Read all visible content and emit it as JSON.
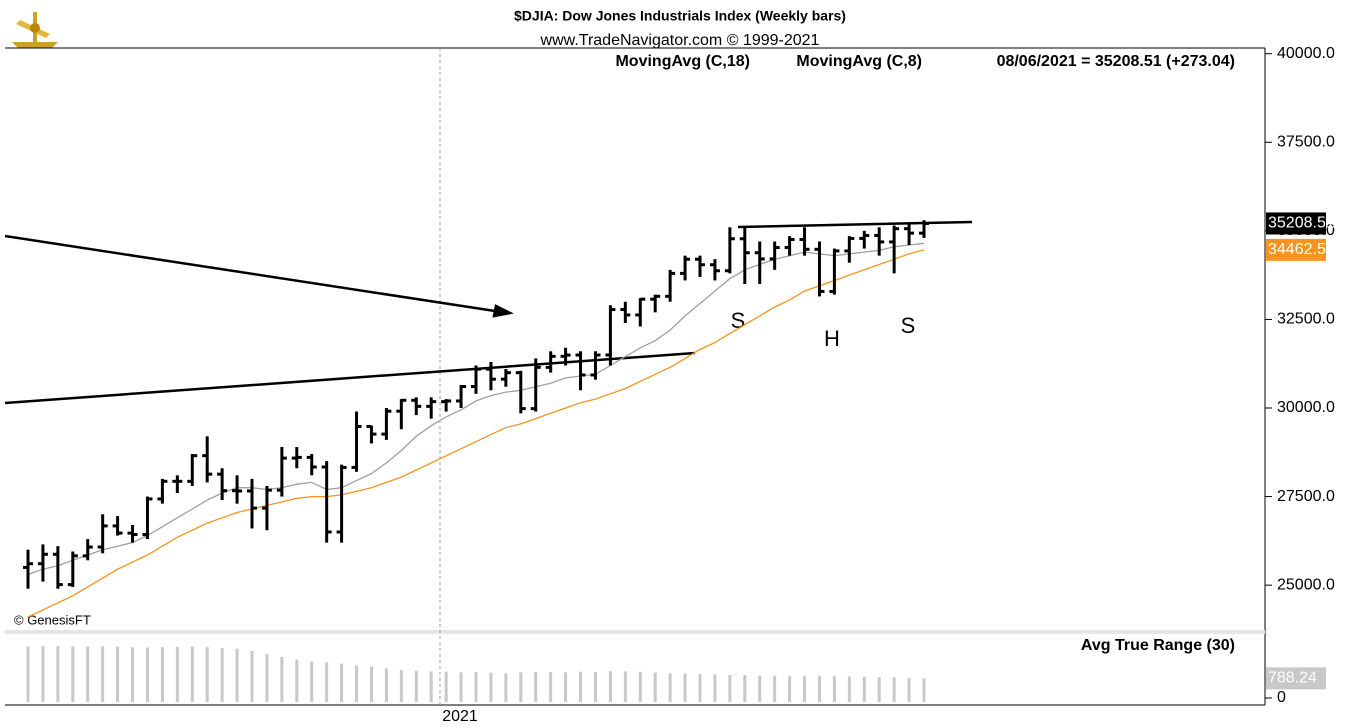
{
  "chart_data": {
    "type": "ohlc",
    "title": "$DJIA:  Dow Jones Industrials Index  (Weekly bars)",
    "subtitle": "www.TradeNavigator.com © 1999-2021",
    "legend": [
      "MovingAvg (C,18)",
      "MovingAvg (C,8)"
    ],
    "last_quote": "08/06/2021 = 35208.51 (+273.04)",
    "credit": "© GenesisFT",
    "x_label": "2021",
    "annotations": [
      "S",
      "H",
      "S"
    ],
    "color": "#000000",
    "grid": false,
    "open": [
      25500,
      25605,
      25871,
      25015,
      25827,
      26075,
      26672,
      26469,
      26428,
      27433,
      27931,
      27930,
      28654,
      28133,
      27666,
      27657,
      27174,
      27682,
      28586,
      28606,
      28335,
      26501,
      28323,
      29479,
      29263,
      29910,
      30218,
      30046,
      30179,
      30199,
      30606,
      31097,
      30814,
      30997,
      29982,
      31148,
      31458,
      31494,
      30932,
      31496,
      32779,
      32627,
      33072,
      33153,
      33800,
      34200,
      34043,
      33874,
      34777,
      34382,
      34208,
      34529,
      34756,
      34479,
      33290,
      34433,
      34786,
      34870,
      34687,
      35061,
      34935
    ],
    "high": [
      26000,
      26150,
      26100,
      25950,
      26300,
      27000,
      26950,
      26700,
      27500,
      28000,
      28100,
      28700,
      29200,
      28300,
      28100,
      28000,
      27800,
      28900,
      28900,
      28700,
      28500,
      28400,
      29900,
      29500,
      30000,
      30250,
      30300,
      30300,
      30250,
      30650,
      31200,
      31300,
      31100,
      31050,
      31400,
      31600,
      31700,
      31600,
      31600,
      32900,
      33000,
      33100,
      33200,
      33900,
      34300,
      34300,
      34200,
      35100,
      35100,
      34700,
      34700,
      34850,
      35100,
      34700,
      34500,
      34850,
      35000,
      35100,
      35150,
      35200,
      35300
    ],
    "low": [
      24900,
      25100,
      24900,
      24950,
      25700,
      25900,
      26400,
      26200,
      26300,
      27300,
      27600,
      27800,
      27900,
      27400,
      27300,
      26600,
      26550,
      27500,
      28300,
      28100,
      26200,
      26200,
      28200,
      29000,
      29100,
      29400,
      29800,
      29700,
      29900,
      30000,
      30400,
      30500,
      30600,
      29850,
      29900,
      31000,
      31200,
      30500,
      30800,
      31200,
      32400,
      32300,
      32700,
      33000,
      33600,
      33700,
      33600,
      33800,
      33500,
      33500,
      33900,
      34300,
      34300,
      33150,
      33200,
      34100,
      34500,
      34300,
      33800,
      34600,
      34800
    ],
    "close": [
      25605,
      25871,
      25015,
      25827,
      26075,
      26672,
      26469,
      26428,
      27433,
      27931,
      27930,
      28654,
      28133,
      27666,
      27657,
      27174,
      27682,
      28586,
      28606,
      28335,
      26501,
      28323,
      29479,
      29263,
      29910,
      30218,
      30046,
      30179,
      30199,
      30606,
      31097,
      30814,
      30997,
      29982,
      31148,
      31458,
      31494,
      30932,
      31496,
      32779,
      32627,
      33072,
      33153,
      33800,
      34200,
      34043,
      33874,
      34777,
      34382,
      34208,
      34529,
      34756,
      34479,
      33290,
      34433,
      34786,
      34870,
      34687,
      35061,
      34935,
      35208.51
    ],
    "series": [
      {
        "name": "MovingAvg (C,18)",
        "color": "#f7931e",
        "values": [
          24100,
          24300,
          24500,
          24700,
          24950,
          25200,
          25450,
          25650,
          25850,
          26100,
          26350,
          26550,
          26750,
          26900,
          27050,
          27150,
          27250,
          27350,
          27450,
          27500,
          27500,
          27550,
          27650,
          27750,
          27900,
          28050,
          28250,
          28450,
          28650,
          28850,
          29050,
          29250,
          29450,
          29550,
          29700,
          29850,
          30000,
          30150,
          30250,
          30400,
          30550,
          30750,
          30950,
          31150,
          31400,
          31650,
          31850,
          32100,
          32350,
          32600,
          32850,
          33050,
          33300,
          33450,
          33600,
          33750,
          33900,
          34050,
          34200,
          34350,
          34462.59
        ]
      },
      {
        "name": "MovingAvg (C,8)",
        "color": "#a0a0a0",
        "values": [
          25300,
          25450,
          25550,
          25700,
          25850,
          26000,
          26100,
          26200,
          26400,
          26650,
          26900,
          27150,
          27400,
          27600,
          27750,
          27750,
          27700,
          27750,
          27850,
          27900,
          27700,
          27750,
          27950,
          28150,
          28450,
          28800,
          29200,
          29500,
          29750,
          29950,
          30200,
          30350,
          30450,
          30500,
          30600,
          30700,
          30850,
          30900,
          30950,
          31200,
          31450,
          31700,
          31900,
          32200,
          32600,
          32950,
          33300,
          33650,
          33900,
          34050,
          34200,
          34300,
          34400,
          34350,
          34300,
          34350,
          34400,
          34450,
          34550,
          34600,
          34650
        ]
      }
    ],
    "ylim": [
      23734,
      40161
    ],
    "yticks": [
      {
        "value": 25000,
        "label": "25000.0"
      },
      {
        "value": 27500,
        "label": "27500.0"
      },
      {
        "value": 30000,
        "label": "30000.0"
      },
      {
        "value": 32500,
        "label": "32500.0"
      },
      {
        "value": 35000,
        "label": "35000.0"
      },
      {
        "value": 37500,
        "label": "37500.0"
      },
      {
        "value": 40000,
        "label": "40000.0"
      }
    ],
    "atr": {
      "title": "Avg True Range (30)",
      "color": "#c8c8c8",
      "values": [
        1850,
        1860,
        1870,
        1860,
        1850,
        1850,
        1840,
        1830,
        1820,
        1830,
        1840,
        1850,
        1830,
        1800,
        1780,
        1700,
        1600,
        1500,
        1420,
        1350,
        1320,
        1280,
        1220,
        1180,
        1120,
        1070,
        1040,
        1020,
        1010,
        990,
        1000,
        980,
        960,
        990,
        1000,
        1000,
        990,
        1010,
        1000,
        1030,
        1020,
        1010,
        980,
        960,
        950,
        930,
        920,
        900,
        900,
        880,
        870,
        860,
        860,
        870,
        860,
        850,
        840,
        830,
        820,
        800,
        788.24
      ],
      "ylim": [
        0,
        2200
      ],
      "yticks": [
        0
      ]
    }
  }
}
